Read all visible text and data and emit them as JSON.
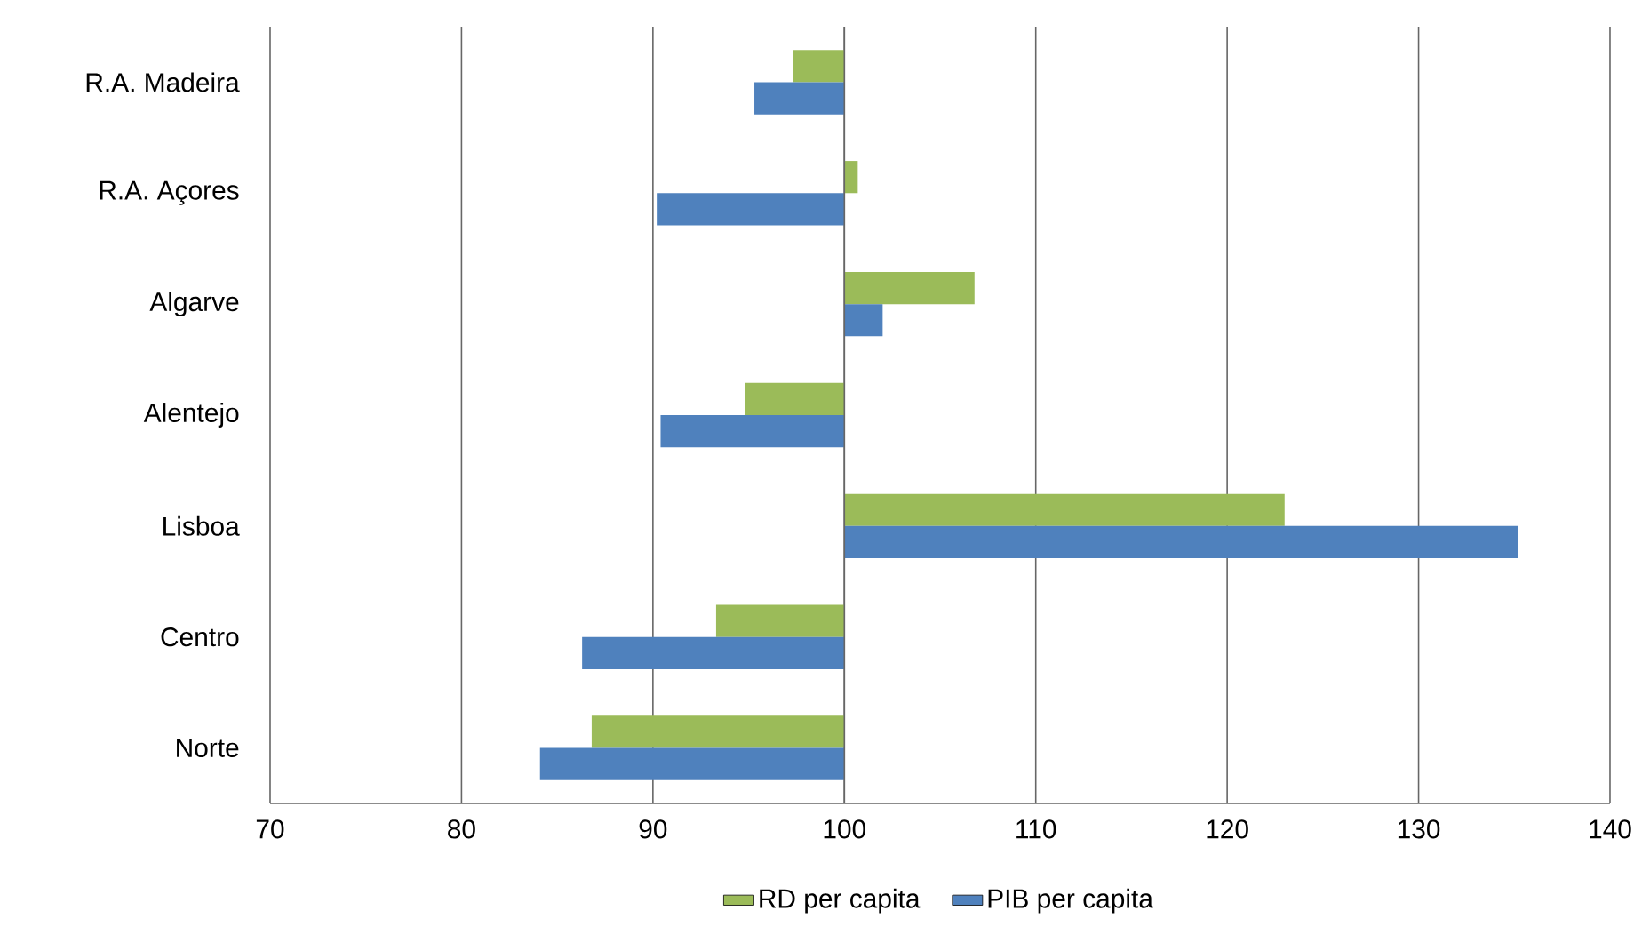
{
  "chart_data": {
    "type": "bar",
    "orientation": "horizontal",
    "categories": [
      "R.A. Madeira",
      "R.A. Açores",
      "Algarve",
      "Alentejo",
      "Lisboa",
      "Centro",
      "Norte"
    ],
    "series": [
      {
        "name": "RD per capita",
        "color": "#9bbb59",
        "base": [
          100,
          100,
          100,
          100,
          100,
          100,
          100
        ],
        "values": [
          -2.7,
          0.7,
          6.8,
          -5.2,
          23.0,
          -6.7,
          -13.2
        ]
      },
      {
        "name": "PIB per capita",
        "color": "#4f81bd",
        "base": [
          100,
          100,
          100,
          100,
          100,
          100,
          100
        ],
        "values": [
          -4.7,
          -9.8,
          2.0,
          -9.6,
          35.2,
          -13.7,
          -15.9
        ]
      }
    ],
    "xlim": [
      70,
      140
    ],
    "xticks": [
      70,
      80,
      90,
      100,
      110,
      120,
      130,
      140
    ],
    "grid": "x",
    "legend": "bottom"
  }
}
